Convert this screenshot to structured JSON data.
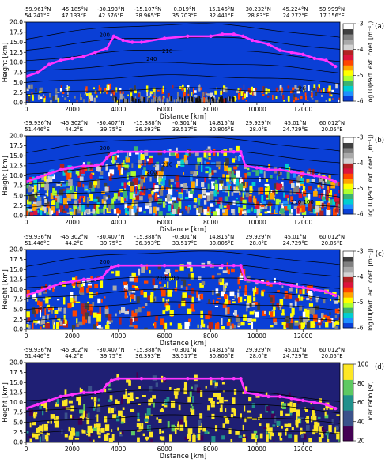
{
  "chart_data": [
    {
      "type": "heatmap",
      "panel_label": "(a)",
      "top_labels": [
        {
          "lat": "-59.961°N",
          "lon": "54.241°E"
        },
        {
          "lat": "-45.185°N",
          "lon": "47.133°E"
        },
        {
          "lat": "-30.193°N",
          "lon": "42.576°E"
        },
        {
          "lat": "-15.107°N",
          "lon": "38.965°E"
        },
        {
          "lat": "0.019°N",
          "lon": "35.703°E"
        },
        {
          "lat": "15.146°N",
          "lon": "32.441°E"
        },
        {
          "lat": "30.232°N",
          "lon": "28.83°E"
        },
        {
          "lat": "45.224°N",
          "lon": "24.272°E"
        },
        {
          "lat": "59.999°N",
          "lon": "17.156°E"
        }
      ],
      "xlabel": "Distance [km]",
      "ylabel": "Height [km]",
      "xlim": [
        0,
        13600
      ],
      "ylim": [
        0,
        20
      ],
      "xticks": [
        0,
        2000,
        4000,
        6000,
        8000,
        10000,
        12000
      ],
      "xticklabels": [
        "0",
        "2000",
        "4000",
        "6000",
        "8000",
        "10000",
        "12000"
      ],
      "yticks": [
        0,
        2.5,
        5,
        7.5,
        10,
        12.5,
        15,
        17.5,
        20
      ],
      "yticklabels": [
        "0.0",
        "2.5",
        "5.0",
        "7.5",
        "10.0",
        "12.5",
        "15.0",
        "17.5",
        "20.0"
      ],
      "colorbar": {
        "label": "log10(Part. ext. coef. [m⁻¹])",
        "ticks": [
          -3,
          -4,
          -5,
          -6
        ],
        "range": [
          -6,
          -3
        ],
        "colormap": "extinction"
      },
      "contour_labels": [
        "200",
        "210",
        "240",
        "26"
      ],
      "background_color": "#0a3fd6"
    },
    {
      "type": "heatmap",
      "panel_label": "(b)",
      "top_labels": [
        {
          "lat": "-59.936°N",
          "lon": "51.446°E"
        },
        {
          "lat": "-45.302°N",
          "lon": "44.2°E"
        },
        {
          "lat": "-30.407°N",
          "lon": "39.75°E"
        },
        {
          "lat": "-15.388°N",
          "lon": "36.393°E"
        },
        {
          "lat": "-0.301°N",
          "lon": "33.517°E"
        },
        {
          "lat": "14.815°N",
          "lon": "30.805°E"
        },
        {
          "lat": "29.929°N",
          "lon": "28.0°E"
        },
        {
          "lat": "45.01°N",
          "lon": "24.729°E"
        },
        {
          "lat": "60.012°N",
          "lon": "20.05°E"
        }
      ],
      "xlabel": "Distance [km]",
      "ylabel": "Height [km]",
      "xlim": [
        0,
        13600
      ],
      "ylim": [
        0,
        20
      ],
      "xticks": [
        0,
        2000,
        4000,
        6000,
        8000,
        10000,
        12000
      ],
      "xticklabels": [
        "0",
        "2000",
        "4000",
        "6000",
        "8000",
        "10000",
        "12000"
      ],
      "yticks": [
        0,
        2.5,
        5,
        7.5,
        10,
        12.5,
        15,
        17.5,
        20
      ],
      "yticklabels": [
        "0.0",
        "2.5",
        "5.0",
        "7.5",
        "10.0",
        "12.5",
        "15.0",
        "17.5",
        "20.0"
      ],
      "colorbar": {
        "label": "log10(Part. ext. coef. [m⁻¹])",
        "ticks": [
          -3,
          -4,
          -5,
          -6
        ],
        "range": [
          -6,
          -3
        ],
        "colormap": "extinction"
      },
      "contour_labels": [
        "200",
        "210",
        "200",
        "210 100"
      ],
      "background_color": "#0a3fd6"
    },
    {
      "type": "heatmap",
      "panel_label": "(c)",
      "top_labels": [
        {
          "lat": "-59.936°N",
          "lon": "51.446°E"
        },
        {
          "lat": "-45.302°N",
          "lon": "44.2°E"
        },
        {
          "lat": "-30.407°N",
          "lon": "39.75°E"
        },
        {
          "lat": "-15.388°N",
          "lon": "36.393°E"
        },
        {
          "lat": "-0.301°N",
          "lon": "33.517°E"
        },
        {
          "lat": "14.815°N",
          "lon": "30.805°E"
        },
        {
          "lat": "29.929°N",
          "lon": "28.0°E"
        },
        {
          "lat": "45.01°N",
          "lon": "24.729°E"
        },
        {
          "lat": "60.012°N",
          "lon": "20.05°E"
        }
      ],
      "xlabel": "Distance [km]",
      "ylabel": "Height [km]",
      "xlim": [
        0,
        13600
      ],
      "ylim": [
        0,
        20
      ],
      "xticks": [
        0,
        2000,
        4000,
        6000,
        8000,
        10000,
        12000
      ],
      "xticklabels": [
        "0",
        "2000",
        "4000",
        "6000",
        "8000",
        "10000",
        "12000"
      ],
      "yticks": [
        0,
        2.5,
        5,
        7.5,
        10,
        12.5,
        15,
        17.5,
        20
      ],
      "yticklabels": [
        "0.0",
        "2.5",
        "5.0",
        "7.5",
        "10.0",
        "12.5",
        "15.0",
        "17.5",
        "20.0"
      ],
      "colorbar": {
        "label": "log10(Part. ext. coef. [m⁻¹])",
        "ticks": [
          -3,
          -4,
          -5,
          -6
        ],
        "range": [
          -6,
          -3
        ],
        "colormap": "extinction"
      },
      "contour_labels": [
        "200",
        "210 100"
      ],
      "background_color": "#0a3fd6"
    },
    {
      "type": "heatmap",
      "panel_label": "(d)",
      "top_labels": [
        {
          "lat": "-59.936°N",
          "lon": "51.446°E"
        },
        {
          "lat": "-45.302°N",
          "lon": "44.2°E"
        },
        {
          "lat": "-30.407°N",
          "lon": "39.75°E"
        },
        {
          "lat": "-15.388°N",
          "lon": "36.393°E"
        },
        {
          "lat": "-0.301°N",
          "lon": "33.517°E"
        },
        {
          "lat": "14.815°N",
          "lon": "30.805°E"
        },
        {
          "lat": "29.929°N",
          "lon": "28.0°E"
        },
        {
          "lat": "45.01°N",
          "lon": "24.729°E"
        },
        {
          "lat": "60.012°N",
          "lon": "20.05°E"
        }
      ],
      "xlabel": "Distance [km]",
      "ylabel": "Height [km]",
      "xlim": [
        0,
        13600
      ],
      "ylim": [
        0,
        20
      ],
      "xticks": [
        0,
        2000,
        4000,
        6000,
        8000,
        10000,
        12000
      ],
      "xticklabels": [
        "0",
        "2000",
        "4000",
        "6000",
        "8000",
        "10000",
        "12000"
      ],
      "yticks": [
        0,
        2.5,
        5,
        7.5,
        10,
        12.5,
        15,
        17.5,
        20
      ],
      "yticklabels": [
        "0.0",
        "2.5",
        "5.0",
        "7.5",
        "10.0",
        "12.5",
        "15.0",
        "17.5",
        "20.0"
      ],
      "colorbar": {
        "label": "Lidar ratio [sr]",
        "ticks": [
          100,
          80,
          60,
          40,
          20
        ],
        "range": [
          20,
          100
        ],
        "colormap": "viridis"
      },
      "contour_labels": [],
      "background_color": "#1f1f74"
    }
  ],
  "tropopause_series": [
    {
      "panel": "(a)",
      "x": [
        0,
        500,
        1000,
        1500,
        2000,
        2500,
        3000,
        3500,
        3800,
        4200,
        4600,
        5000,
        6000,
        7000,
        8000,
        8500,
        9000,
        9400,
        9800,
        10500,
        11000,
        11500,
        12000,
        12500,
        13000,
        13400
      ],
      "y": [
        6.5,
        7.5,
        9.5,
        10.5,
        11.0,
        11.5,
        12.5,
        13.5,
        16.5,
        15.5,
        15.0,
        15.0,
        16.0,
        16.5,
        16.5,
        17.0,
        17.0,
        16.5,
        15.5,
        14.5,
        13.0,
        12.5,
        12.0,
        11.0,
        10.5,
        9.0
      ]
    },
    {
      "panel": "(b)",
      "x": [
        0,
        500,
        1000,
        1500,
        2000,
        2500,
        3000,
        3300,
        3500,
        3700,
        4000,
        5000,
        6000,
        7000,
        8000,
        8500,
        9000,
        9300,
        9500,
        10000,
        10500,
        11000,
        11500,
        12000,
        12500,
        13000,
        13400
      ],
      "y": [
        8.5,
        9.5,
        10.5,
        11.5,
        12.0,
        12.5,
        12.5,
        13.0,
        14.5,
        15.5,
        16.0,
        16.0,
        16.0,
        16.0,
        16.0,
        16.0,
        16.0,
        16.0,
        12.5,
        12.0,
        11.5,
        11.5,
        11.0,
        10.5,
        10.0,
        9.5,
        8.5
      ]
    },
    {
      "panel": "(c)",
      "x": [
        0,
        500,
        1000,
        1500,
        2000,
        2500,
        3000,
        3300,
        3500,
        3700,
        4000,
        5000,
        6000,
        7000,
        8000,
        8500,
        9000,
        9300,
        9500,
        10000,
        10500,
        11000,
        11500,
        12000,
        12500,
        13000,
        13400
      ],
      "y": [
        8.5,
        9.5,
        10.5,
        11.5,
        12.0,
        12.5,
        12.5,
        13.0,
        14.5,
        15.5,
        16.0,
        16.0,
        16.0,
        16.0,
        16.0,
        16.0,
        16.0,
        16.0,
        12.5,
        12.0,
        11.5,
        11.5,
        11.0,
        10.5,
        10.0,
        9.5,
        8.5
      ]
    },
    {
      "panel": "(d)",
      "x": [
        0,
        500,
        1000,
        1500,
        2000,
        2500,
        3000,
        3300,
        3500,
        3700,
        4000,
        5000,
        6000,
        7000,
        8000,
        8500,
        9000,
        9300,
        9500,
        10000,
        10500,
        11000,
        11500,
        12000,
        12500,
        13000,
        13400
      ],
      "y": [
        8.5,
        9.5,
        10.5,
        11.5,
        12.0,
        12.5,
        12.5,
        13.0,
        14.5,
        15.5,
        16.0,
        16.0,
        16.0,
        16.0,
        16.0,
        16.0,
        16.0,
        16.0,
        12.5,
        12.0,
        11.5,
        11.5,
        11.0,
        10.5,
        10.0,
        9.5,
        8.5
      ]
    }
  ],
  "colors": {
    "tropopause": "#ff33ff",
    "contour": "#000000",
    "extinction_scale": [
      "#0a3fd6",
      "#1e90ff",
      "#00ced1",
      "#3cb371",
      "#adff2f",
      "#ffff00",
      "#ffa500",
      "#ff4500",
      "#dc143c",
      "#b22222",
      "#d3d3d3",
      "#a9a9a9",
      "#808080",
      "#404040",
      "#ffffff"
    ],
    "viridis_scale": [
      "#440154",
      "#3b528b",
      "#21918c",
      "#5ec962",
      "#fde725"
    ]
  }
}
